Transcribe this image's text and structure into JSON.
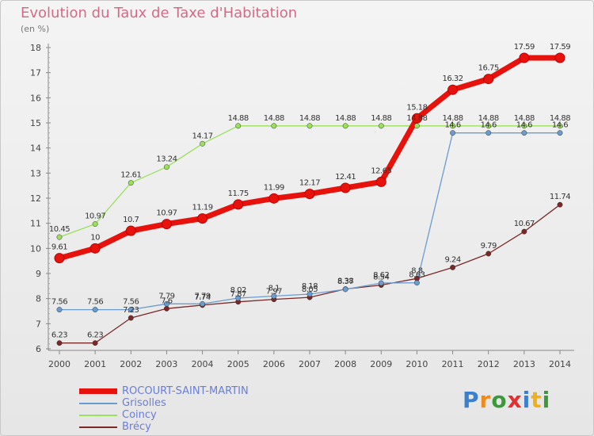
{
  "title": "Evolution du Taux de Taxe d'Habitation",
  "unit_label": "(en %)",
  "logo": {
    "text": "Proxiti",
    "letters": [
      {
        "ch": "P",
        "color": "#3a7fd0"
      },
      {
        "ch": "r",
        "color": "#f08a1c"
      },
      {
        "ch": "o",
        "color": "#3a9a3a"
      },
      {
        "ch": "x",
        "color": "#e03030"
      },
      {
        "ch": "i",
        "color": "#3a7fd0"
      },
      {
        "ch": "t",
        "color": "#f0b01c"
      },
      {
        "ch": "i",
        "color": "#3a9a3a"
      }
    ]
  },
  "chart_data": {
    "type": "line",
    "title": "Evolution du Taux de Taxe d'Habitation",
    "ylabel": "(en %)",
    "xlabel": "",
    "x": [
      "2000",
      "2001",
      "2002",
      "2003",
      "2004",
      "2005",
      "2006",
      "2007",
      "2008",
      "2009",
      "2010",
      "2011",
      "2012",
      "2013",
      "2014"
    ],
    "ylim": [
      6,
      18
    ],
    "yticks": [
      "6",
      "7",
      "8",
      "9",
      "10",
      "11",
      "12",
      "13",
      "14",
      "15",
      "16",
      "17",
      "18"
    ],
    "grid": false,
    "legend_position": "bottom-left",
    "series": [
      {
        "name": "ROCOURT-SAINT-MARTIN",
        "color": "#e8120c",
        "values": [
          9.61,
          10,
          10.7,
          10.97,
          11.19,
          11.75,
          11.99,
          12.17,
          12.41,
          12.65,
          15.18,
          16.32,
          16.75,
          17.59,
          17.59
        ],
        "labels": [
          "9.61",
          "10",
          "10.7",
          "10.97",
          "11.19",
          "11.75",
          "11.99",
          "12.17",
          "12.41",
          "12.65",
          "15.18",
          "16.32",
          "16.75",
          "17.59",
          "17.59"
        ]
      },
      {
        "name": "Grisolles",
        "color": "#6a9cd0",
        "values": [
          7.56,
          7.56,
          7.56,
          7.79,
          7.79,
          8.02,
          8.1,
          8.18,
          8.37,
          8.62,
          8.63,
          14.6,
          14.6,
          14.6,
          14.6
        ],
        "labels": [
          "7.56",
          "7.56",
          "7.56",
          "7.79",
          "7.79",
          "8.02",
          "8.1",
          "8.18",
          "8.37",
          "8.62",
          "8.63",
          "14.6",
          "14.6",
          "14.6",
          "14.6"
        ]
      },
      {
        "name": "Coincy",
        "color": "#9be05a",
        "values": [
          10.45,
          10.97,
          12.61,
          13.24,
          14.17,
          14.88,
          14.88,
          14.88,
          14.88,
          14.88,
          14.88,
          14.88,
          14.88,
          14.88,
          14.88
        ],
        "labels": [
          "10.45",
          "10.97",
          "12.61",
          "13.24",
          "14.17",
          "14.88",
          "14.88",
          "14.88",
          "14.88",
          "14.88",
          "14.88",
          "14.88",
          "14.88",
          "14.88",
          "14.88"
        ]
      },
      {
        "name": "Brécy",
        "color": "#7a2828",
        "values": [
          6.23,
          6.23,
          7.23,
          7.6,
          7.74,
          7.87,
          7.97,
          8.05,
          8.38,
          8.54,
          8.8,
          9.24,
          9.79,
          10.67,
          11.74
        ],
        "labels": [
          "6.23",
          "6.23",
          "7.23",
          "7.6",
          "7.74",
          "7.87",
          "7.97",
          "8.05",
          "8.38",
          "8.54",
          "8.8",
          "9.24",
          "9.79",
          "10.67",
          "11.74"
        ]
      }
    ]
  }
}
